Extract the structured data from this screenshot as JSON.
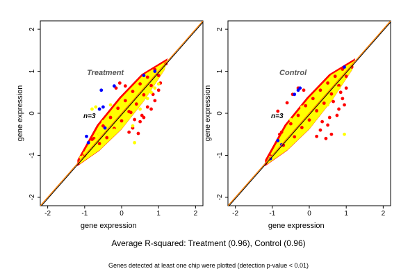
{
  "summary": "Average R-squared: Treatment (0.96), Control (0.96)",
  "footnote": "Genes detected at least one chip were plotted (detection p-value < 0.01)",
  "colors": {
    "red": "#ff0000",
    "yellow": "#ffff00",
    "blue": "#0000ff",
    "diag_black": "#000000",
    "diag_orange": "#ff7f00"
  },
  "chart_data": [
    {
      "type": "scatter",
      "title": "Treatment",
      "annotation": "n=3",
      "xlabel": "gene expression",
      "ylabel": "gene expression",
      "xlim": [
        -2.2,
        2.2
      ],
      "ylim": [
        -2.2,
        2.2
      ],
      "xticks": [
        -2,
        -1,
        0,
        1,
        2
      ],
      "yticks": [
        -2,
        -1,
        0,
        1,
        2
      ],
      "series": [
        {
          "color": "red",
          "points": [
            [
              -1.0,
              -1.0
            ],
            [
              -0.6,
              -0.72
            ],
            [
              -0.4,
              -0.58
            ],
            [
              -0.2,
              -0.36
            ],
            [
              0.0,
              -0.18
            ],
            [
              0.2,
              0.04
            ],
            [
              0.4,
              0.22
            ],
            [
              0.6,
              0.44
            ],
            [
              0.8,
              0.66
            ],
            [
              1.0,
              0.9
            ],
            [
              1.2,
              1.18
            ],
            [
              -0.8,
              -0.62
            ],
            [
              -0.5,
              -0.3
            ],
            [
              -0.3,
              -0.1
            ],
            [
              -0.1,
              0.12
            ],
            [
              0.1,
              0.3
            ],
            [
              0.3,
              0.52
            ],
            [
              0.5,
              0.7
            ],
            [
              0.7,
              0.86
            ],
            [
              0.9,
              1.04
            ],
            [
              0.3,
              -0.35
            ],
            [
              0.5,
              -0.2
            ],
            [
              0.6,
              -0.1
            ],
            [
              0.8,
              0.1
            ],
            [
              0.9,
              0.3
            ],
            [
              1.0,
              0.55
            ],
            [
              0.2,
              -0.45
            ],
            [
              0.45,
              -0.48
            ],
            [
              0.55,
              -0.05
            ],
            [
              0.85,
              0.45
            ],
            [
              0.7,
              0.15
            ],
            [
              -0.15,
              0.6
            ],
            [
              0.1,
              0.65
            ],
            [
              -0.05,
              0.72
            ],
            [
              -0.6,
              -0.5
            ],
            [
              -0.75,
              -0.6
            ],
            [
              0.25,
              0.02
            ],
            [
              0.35,
              -0.15
            ],
            [
              1.05,
              0.72
            ]
          ]
        },
        {
          "color": "yellow",
          "points": [
            [
              -1.1,
              -1.05
            ],
            [
              -1.0,
              -0.95
            ],
            [
              -0.9,
              -0.88
            ],
            [
              -0.7,
              -0.64
            ],
            [
              -0.5,
              -0.46
            ],
            [
              -0.3,
              -0.26
            ],
            [
              -0.1,
              -0.06
            ],
            [
              0.1,
              0.12
            ],
            [
              0.3,
              0.32
            ],
            [
              0.5,
              0.52
            ],
            [
              0.7,
              0.72
            ],
            [
              0.9,
              0.92
            ],
            [
              1.1,
              1.12
            ],
            [
              -0.8,
              -0.72
            ],
            [
              -0.6,
              -0.5
            ],
            [
              -0.4,
              -0.32
            ],
            [
              -0.2,
              -0.14
            ],
            [
              0.0,
              0.04
            ],
            [
              0.2,
              0.22
            ],
            [
              0.4,
              0.42
            ],
            [
              0.6,
              0.62
            ],
            [
              0.8,
              0.82
            ],
            [
              1.0,
              1.02
            ],
            [
              0.9,
              0.6
            ],
            [
              1.0,
              0.7
            ],
            [
              0.3,
              -0.3
            ],
            [
              0.35,
              -0.7
            ],
            [
              -0.8,
              0.1
            ],
            [
              -0.7,
              0.15
            ],
            [
              0.8,
              0.5
            ],
            [
              -0.3,
              0.2
            ],
            [
              0.5,
              0.1
            ],
            [
              0.2,
              -0.1
            ],
            [
              -0.5,
              -0.2
            ],
            [
              0.7,
              0.35
            ],
            [
              0.1,
              -0.2
            ],
            [
              -0.2,
              -0.4
            ]
          ]
        },
        {
          "color": "blue",
          "points": [
            [
              -0.55,
              0.55
            ],
            [
              -0.5,
              0.15
            ],
            [
              -0.2,
              0.65
            ],
            [
              -0.6,
              0.1
            ],
            [
              -0.95,
              -0.55
            ],
            [
              -0.9,
              -0.7
            ],
            [
              -0.45,
              -0.35
            ],
            [
              0.6,
              0.9
            ],
            [
              0.9,
              1.0
            ]
          ]
        }
      ]
    },
    {
      "type": "scatter",
      "title": "Control",
      "annotation": "n=3",
      "xlabel": "gene expression",
      "ylabel": "gene expression",
      "xlim": [
        -2.2,
        2.2
      ],
      "ylim": [
        -2.2,
        2.2
      ],
      "xticks": [
        -2,
        -1,
        0,
        1,
        2
      ],
      "yticks": [
        -2,
        -1,
        0,
        1,
        2
      ],
      "series": [
        {
          "color": "red",
          "points": [
            [
              -1.05,
              -1.02
            ],
            [
              -0.7,
              -0.76
            ],
            [
              -0.4,
              -0.56
            ],
            [
              -0.2,
              -0.34
            ],
            [
              0.0,
              -0.16
            ],
            [
              0.2,
              0.06
            ],
            [
              0.4,
              0.24
            ],
            [
              0.6,
              0.46
            ],
            [
              0.8,
              0.66
            ],
            [
              1.0,
              0.88
            ],
            [
              1.15,
              1.1
            ],
            [
              -0.8,
              -0.5
            ],
            [
              -0.5,
              -0.25
            ],
            [
              -0.3,
              -0.05
            ],
            [
              -0.1,
              0.18
            ],
            [
              0.1,
              0.35
            ],
            [
              0.3,
              0.55
            ],
            [
              0.5,
              0.72
            ],
            [
              0.7,
              0.88
            ],
            [
              0.9,
              1.05
            ],
            [
              0.3,
              -0.4
            ],
            [
              0.5,
              -0.28
            ],
            [
              0.6,
              -0.5
            ],
            [
              0.8,
              0.1
            ],
            [
              0.9,
              0.35
            ],
            [
              1.0,
              0.6
            ],
            [
              0.2,
              -0.55
            ],
            [
              0.45,
              -0.6
            ],
            [
              0.55,
              -0.1
            ],
            [
              0.85,
              0.5
            ],
            [
              -0.6,
              0.25
            ],
            [
              -0.3,
              0.6
            ],
            [
              -0.15,
              0.55
            ],
            [
              -0.75,
              -0.45
            ],
            [
              -0.45,
              0.45
            ],
            [
              0.65,
              0.28
            ],
            [
              0.35,
              -0.2
            ],
            [
              0.75,
              -0.05
            ],
            [
              -0.85,
              0.05
            ],
            [
              0.95,
              0.2
            ]
          ]
        },
        {
          "color": "yellow",
          "points": [
            [
              -1.05,
              -1.05
            ],
            [
              -0.95,
              -0.96
            ],
            [
              -0.85,
              -0.86
            ],
            [
              -0.7,
              -0.68
            ],
            [
              -0.5,
              -0.48
            ],
            [
              -0.3,
              -0.28
            ],
            [
              -0.1,
              -0.08
            ],
            [
              0.1,
              0.12
            ],
            [
              0.3,
              0.32
            ],
            [
              0.5,
              0.52
            ],
            [
              0.7,
              0.72
            ],
            [
              0.9,
              0.92
            ],
            [
              1.1,
              1.1
            ],
            [
              -0.8,
              -0.74
            ],
            [
              -0.6,
              -0.54
            ],
            [
              -0.4,
              -0.36
            ],
            [
              -0.2,
              -0.16
            ],
            [
              0.0,
              0.02
            ],
            [
              0.2,
              0.22
            ],
            [
              0.4,
              0.42
            ],
            [
              0.6,
              0.62
            ],
            [
              0.8,
              0.8
            ],
            [
              1.0,
              1.0
            ],
            [
              0.3,
              0.1
            ],
            [
              -0.2,
              0.15
            ],
            [
              0.5,
              0.2
            ],
            [
              -0.5,
              -0.15
            ],
            [
              0.6,
              0.35
            ],
            [
              0.1,
              -0.15
            ],
            [
              -0.35,
              -0.45
            ],
            [
              0.95,
              -0.5
            ],
            [
              0.8,
              0.6
            ]
          ]
        },
        {
          "color": "blue",
          "points": [
            [
              -0.3,
              0.55
            ],
            [
              -0.4,
              0.45
            ],
            [
              -0.25,
              0.6
            ],
            [
              -0.85,
              -0.65
            ],
            [
              -0.75,
              -0.75
            ],
            [
              -1.05,
              -1.08
            ],
            [
              0.95,
              1.1
            ]
          ]
        }
      ]
    }
  ]
}
